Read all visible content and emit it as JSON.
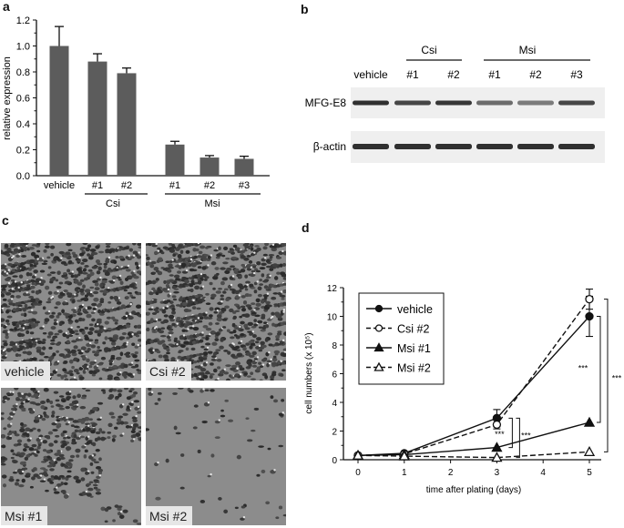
{
  "panels": {
    "a": {
      "letter": "a"
    },
    "b": {
      "letter": "b"
    },
    "c": {
      "letter": "c"
    },
    "d": {
      "letter": "d"
    }
  },
  "chart_data": [
    {
      "panel": "a",
      "type": "bar",
      "title": "",
      "xlabel": "",
      "ylabel": "relative expression",
      "ylim": [
        0,
        1.2
      ],
      "yticks": [
        "0.0",
        "0.2",
        "0.4",
        "0.6",
        "0.8",
        "1.0",
        "1.2"
      ],
      "categories": [
        "vehicle",
        "#1",
        "#2",
        "#1",
        "#2",
        "#3"
      ],
      "groups": [
        {
          "label": "Csi",
          "members": [
            1,
            2
          ]
        },
        {
          "label": "Msi",
          "members": [
            3,
            4,
            5
          ]
        }
      ],
      "values": [
        1.0,
        0.88,
        0.79,
        0.24,
        0.14,
        0.13
      ],
      "errors": [
        0.15,
        0.06,
        0.04,
        0.025,
        0.015,
        0.02
      ],
      "bar_color": "#5c5c5c"
    },
    {
      "panel": "d",
      "type": "line",
      "title": "",
      "xlabel": "time after plating (days)",
      "ylabel": "cell numbers (x 10⁵)",
      "xlim": [
        0,
        5
      ],
      "ylim": [
        0,
        12
      ],
      "xticks": [
        "0",
        "1",
        "2",
        "3",
        "4",
        "5"
      ],
      "yticks": [
        "0",
        "2",
        "4",
        "6",
        "8",
        "10",
        "12"
      ],
      "x": [
        0,
        1,
        3,
        5
      ],
      "series": [
        {
          "name": "vehicle",
          "marker": "filled-circle",
          "line": "solid",
          "values": [
            0.3,
            0.45,
            2.9,
            10.0
          ],
          "errors": [
            0.05,
            0.05,
            0.6,
            1.4
          ]
        },
        {
          "name": "Csi #2",
          "marker": "open-circle",
          "line": "dashed",
          "values": [
            0.3,
            0.4,
            2.45,
            11.2
          ],
          "errors": [
            0.05,
            0.05,
            0.3,
            0.7
          ]
        },
        {
          "name": "Msi #1",
          "marker": "filled-triangle",
          "line": "solid",
          "values": [
            0.3,
            0.35,
            0.85,
            2.6
          ],
          "errors": [
            0,
            0,
            0,
            0
          ]
        },
        {
          "name": "Msi #2",
          "marker": "open-triangle",
          "line": "dashed",
          "values": [
            0.3,
            0.25,
            0.15,
            0.55
          ],
          "errors": [
            0,
            0,
            0,
            0
          ]
        }
      ],
      "annotations": [
        "***",
        "***",
        "***",
        "***"
      ],
      "legend_position": "upper-left"
    }
  ],
  "blot": {
    "group_labels": [
      "Csi",
      "Msi"
    ],
    "lane_labels": [
      "vehicle",
      "#1",
      "#2",
      "#1",
      "#2",
      "#3"
    ],
    "rows": [
      {
        "label": "MFG-E8",
        "intensity": [
          0.95,
          0.8,
          0.9,
          0.55,
          0.45,
          0.8
        ]
      },
      {
        "label": "β-actin",
        "intensity": [
          0.95,
          0.95,
          0.95,
          0.95,
          0.95,
          0.95
        ]
      }
    ]
  },
  "micrographs": [
    {
      "label": "vehicle",
      "density": "confluent"
    },
    {
      "label": "Csi #2",
      "density": "confluent"
    },
    {
      "label": "Msi #1",
      "density": "partial"
    },
    {
      "label": "Msi #2",
      "density": "sparse"
    }
  ]
}
